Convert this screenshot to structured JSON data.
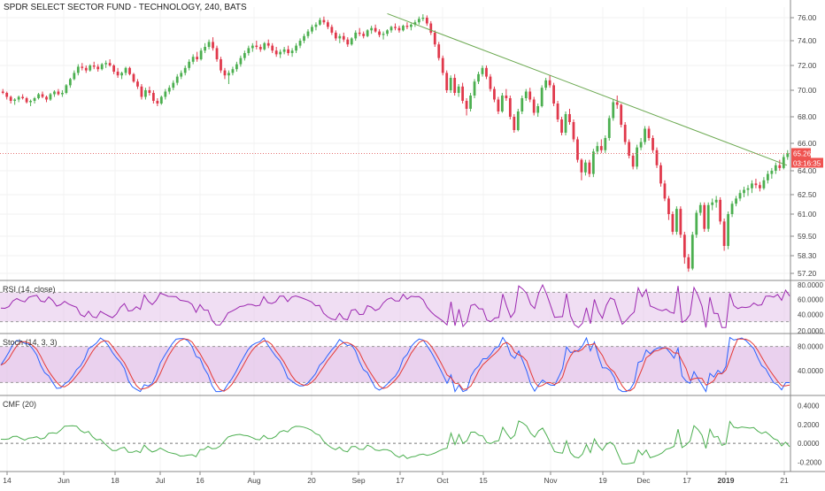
{
  "chart_data": {
    "type": "candlestick",
    "title": "SPDR SELECT SECTOR FUND - TECHNOLOGY, 240, BATS",
    "price_axis": {
      "ticks": [
        "76.00",
        "74.00",
        "72.00",
        "70.00",
        "68.00",
        "66.00",
        "64.00",
        "62.50",
        "61.00",
        "59.50",
        "58.30",
        "57.20"
      ],
      "ylim": [
        57.0,
        76.6
      ]
    },
    "x_axis": {
      "ticks": [
        "14",
        "Jun",
        "18",
        "Jul",
        "16",
        "Aug",
        "20",
        "Sep",
        "17",
        "Oct",
        "15",
        "Nov",
        "19",
        "Dec",
        "17",
        "2019",
        "21"
      ]
    },
    "last_price": "65.26",
    "countdown": "03:16:35",
    "colors": {
      "up": "#4caf50",
      "down": "#e0384b",
      "trendline": "#6aa84f",
      "rsi": "#9c27b0",
      "stoch_k": "#2962ff",
      "stoch_d": "#e53935",
      "cmf": "#4caf50",
      "panel_fill": "#e1bee7"
    },
    "candles": [
      [
        69.9,
        70.1,
        69.7,
        69.8
      ],
      [
        69.8,
        69.9,
        69.3,
        69.5
      ],
      [
        69.5,
        69.6,
        69.0,
        69.2
      ],
      [
        69.2,
        69.4,
        68.9,
        69.3
      ],
      [
        69.3,
        69.6,
        69.1,
        69.5
      ],
      [
        69.5,
        69.7,
        69.3,
        69.4
      ],
      [
        69.4,
        69.5,
        69.0,
        69.1
      ],
      [
        69.1,
        69.3,
        68.8,
        69.2
      ],
      [
        69.2,
        69.5,
        69.0,
        69.4
      ],
      [
        69.4,
        69.8,
        69.3,
        69.7
      ],
      [
        69.7,
        69.9,
        69.4,
        69.5
      ],
      [
        69.5,
        69.6,
        69.1,
        69.3
      ],
      [
        69.3,
        69.8,
        69.2,
        69.7
      ],
      [
        69.7,
        70.0,
        69.5,
        69.9
      ],
      [
        69.9,
        70.1,
        69.6,
        69.7
      ],
      [
        69.7,
        70.0,
        69.5,
        69.8
      ],
      [
        69.8,
        70.5,
        69.7,
        70.4
      ],
      [
        70.4,
        71.0,
        70.2,
        70.9
      ],
      [
        70.9,
        71.6,
        70.8,
        71.4
      ],
      [
        71.4,
        72.1,
        71.2,
        71.9
      ],
      [
        71.9,
        72.2,
        71.6,
        71.8
      ],
      [
        71.8,
        72.0,
        71.4,
        71.6
      ],
      [
        71.6,
        72.1,
        71.5,
        72.0
      ],
      [
        72.0,
        72.3,
        71.7,
        71.9
      ],
      [
        71.9,
        72.1,
        71.5,
        71.7
      ],
      [
        71.7,
        72.2,
        71.6,
        72.1
      ],
      [
        72.1,
        72.4,
        71.8,
        72.2
      ],
      [
        72.2,
        72.5,
        71.9,
        72.0
      ],
      [
        72.0,
        72.1,
        71.3,
        71.5
      ],
      [
        71.5,
        71.8,
        71.0,
        71.2
      ],
      [
        71.2,
        71.5,
        70.9,
        71.4
      ],
      [
        71.4,
        71.9,
        71.2,
        71.8
      ],
      [
        71.8,
        71.9,
        71.2,
        71.3
      ],
      [
        71.3,
        71.4,
        70.6,
        70.7
      ],
      [
        70.7,
        70.9,
        70.1,
        70.3
      ],
      [
        70.3,
        70.5,
        69.3,
        69.5
      ],
      [
        69.5,
        70.2,
        69.3,
        70.0
      ],
      [
        70.0,
        70.3,
        69.6,
        69.8
      ],
      [
        69.8,
        70.0,
        69.0,
        69.2
      ],
      [
        69.2,
        69.4,
        68.8,
        69.0
      ],
      [
        69.0,
        69.6,
        68.9,
        69.5
      ],
      [
        69.5,
        70.1,
        69.3,
        69.9
      ],
      [
        69.9,
        70.4,
        69.7,
        70.2
      ],
      [
        70.2,
        70.8,
        70.0,
        70.6
      ],
      [
        70.6,
        71.3,
        70.4,
        71.1
      ],
      [
        71.1,
        71.6,
        70.9,
        71.4
      ],
      [
        71.4,
        72.0,
        71.2,
        71.8
      ],
      [
        71.8,
        72.5,
        71.6,
        72.3
      ],
      [
        72.3,
        72.9,
        72.1,
        72.7
      ],
      [
        72.7,
        73.1,
        72.3,
        72.5
      ],
      [
        72.5,
        73.4,
        72.4,
        73.2
      ],
      [
        73.2,
        73.8,
        73.0,
        73.5
      ],
      [
        73.5,
        74.1,
        73.3,
        73.9
      ],
      [
        73.9,
        74.3,
        73.2,
        73.4
      ],
      [
        73.4,
        73.6,
        72.3,
        72.5
      ],
      [
        72.5,
        72.7,
        71.4,
        71.6
      ],
      [
        71.6,
        71.8,
        70.9,
        71.2
      ],
      [
        71.2,
        71.6,
        70.5,
        71.4
      ],
      [
        71.4,
        71.9,
        71.2,
        71.7
      ],
      [
        71.7,
        72.3,
        71.5,
        72.1
      ],
      [
        72.1,
        72.8,
        71.9,
        72.6
      ],
      [
        72.6,
        73.2,
        72.4,
        73.0
      ],
      [
        73.0,
        73.6,
        72.8,
        73.4
      ],
      [
        73.4,
        73.8,
        73.1,
        73.6
      ],
      [
        73.6,
        74.0,
        73.3,
        73.5
      ],
      [
        73.5,
        73.7,
        73.1,
        73.3
      ],
      [
        73.3,
        73.9,
        73.2,
        73.8
      ],
      [
        73.8,
        74.1,
        73.4,
        73.6
      ],
      [
        73.6,
        73.8,
        73.0,
        73.2
      ],
      [
        73.2,
        73.5,
        72.7,
        72.9
      ],
      [
        72.9,
        73.3,
        72.6,
        73.1
      ],
      [
        73.1,
        73.5,
        72.9,
        73.3
      ],
      [
        73.3,
        73.6,
        72.8,
        73.0
      ],
      [
        73.0,
        73.4,
        72.7,
        73.2
      ],
      [
        73.2,
        73.8,
        73.0,
        73.6
      ],
      [
        73.6,
        74.2,
        73.4,
        74.0
      ],
      [
        74.0,
        74.6,
        73.8,
        74.4
      ],
      [
        74.4,
        75.0,
        74.2,
        74.8
      ],
      [
        74.8,
        75.4,
        74.6,
        75.2
      ],
      [
        75.2,
        75.6,
        74.9,
        75.4
      ],
      [
        75.4,
        76.0,
        75.3,
        75.8
      ],
      [
        75.8,
        76.1,
        75.4,
        75.6
      ],
      [
        75.6,
        75.8,
        75.0,
        75.2
      ],
      [
        75.2,
        75.4,
        74.5,
        74.7
      ],
      [
        74.7,
        74.9,
        74.0,
        74.2
      ],
      [
        74.2,
        74.6,
        73.8,
        74.4
      ],
      [
        74.4,
        74.7,
        73.9,
        74.1
      ],
      [
        74.1,
        74.3,
        73.5,
        73.7
      ],
      [
        73.7,
        74.3,
        73.6,
        74.2
      ],
      [
        74.2,
        74.9,
        74.0,
        74.7
      ],
      [
        74.7,
        75.1,
        74.4,
        74.6
      ],
      [
        74.6,
        74.8,
        74.2,
        74.4
      ],
      [
        74.4,
        75.0,
        74.3,
        74.9
      ],
      [
        74.9,
        75.3,
        74.6,
        75.1
      ],
      [
        75.1,
        75.4,
        74.7,
        74.8
      ],
      [
        74.8,
        75.0,
        74.3,
        74.5
      ],
      [
        74.5,
        74.8,
        74.1,
        74.6
      ],
      [
        74.6,
        75.0,
        74.4,
        74.9
      ],
      [
        74.9,
        75.3,
        74.7,
        75.2
      ],
      [
        75.2,
        75.5,
        74.9,
        75.1
      ],
      [
        75.1,
        75.3,
        74.7,
        74.9
      ],
      [
        74.9,
        75.4,
        74.8,
        75.3
      ],
      [
        75.3,
        75.6,
        75.0,
        75.2
      ],
      [
        75.2,
        75.5,
        74.9,
        75.4
      ],
      [
        75.4,
        75.8,
        75.2,
        75.6
      ],
      [
        75.6,
        76.1,
        75.4,
        75.9
      ],
      [
        75.9,
        76.3,
        75.7,
        76.0
      ],
      [
        76.0,
        76.2,
        75.3,
        75.5
      ],
      [
        75.5,
        75.7,
        74.5,
        74.7
      ],
      [
        74.7,
        74.9,
        73.5,
        73.7
      ],
      [
        73.7,
        73.9,
        72.4,
        72.6
      ],
      [
        72.6,
        72.8,
        71.2,
        71.4
      ],
      [
        71.4,
        71.6,
        69.8,
        70.0
      ],
      [
        70.0,
        71.2,
        69.8,
        71.0
      ],
      [
        71.0,
        71.3,
        69.6,
        69.8
      ],
      [
        69.8,
        70.5,
        69.5,
        70.3
      ],
      [
        70.3,
        70.6,
        69.0,
        69.2
      ],
      [
        69.2,
        69.4,
        68.1,
        68.6
      ],
      [
        68.6,
        69.8,
        68.4,
        69.6
      ],
      [
        69.6,
        70.9,
        69.4,
        70.7
      ],
      [
        70.7,
        71.5,
        70.5,
        71.3
      ],
      [
        71.3,
        72.0,
        71.1,
        71.8
      ],
      [
        71.8,
        72.0,
        70.9,
        71.1
      ],
      [
        71.1,
        71.3,
        69.9,
        70.1
      ],
      [
        70.1,
        70.3,
        69.1,
        69.3
      ],
      [
        69.3,
        69.5,
        68.2,
        68.4
      ],
      [
        68.4,
        69.8,
        68.3,
        69.6
      ],
      [
        69.6,
        70.1,
        69.2,
        69.4
      ],
      [
        69.4,
        69.6,
        67.8,
        68.0
      ],
      [
        68.0,
        68.2,
        66.8,
        67.0
      ],
      [
        67.0,
        68.6,
        66.9,
        68.4
      ],
      [
        68.4,
        69.6,
        68.2,
        69.4
      ],
      [
        69.4,
        70.1,
        69.2,
        69.9
      ],
      [
        69.9,
        70.2,
        69.1,
        69.3
      ],
      [
        69.3,
        69.5,
        68.1,
        68.3
      ],
      [
        68.3,
        69.0,
        68.0,
        68.8
      ],
      [
        68.8,
        70.4,
        68.7,
        70.2
      ],
      [
        70.2,
        71.0,
        70.0,
        70.8
      ],
      [
        70.8,
        71.2,
        70.2,
        70.4
      ],
      [
        70.4,
        70.6,
        68.8,
        69.0
      ],
      [
        69.0,
        69.2,
        67.6,
        67.8
      ],
      [
        67.8,
        68.0,
        66.6,
        66.8
      ],
      [
        66.8,
        68.4,
        66.6,
        68.2
      ],
      [
        68.2,
        68.6,
        67.4,
        67.6
      ],
      [
        67.6,
        67.8,
        66.1,
        66.3
      ],
      [
        66.3,
        66.5,
        64.6,
        64.8
      ],
      [
        64.8,
        64.9,
        63.4,
        63.9
      ],
      [
        63.9,
        64.8,
        63.7,
        64.6
      ],
      [
        64.6,
        64.8,
        63.6,
        63.8
      ],
      [
        63.8,
        65.6,
        63.6,
        65.4
      ],
      [
        65.4,
        66.1,
        65.2,
        65.8
      ],
      [
        65.8,
        66.3,
        65.3,
        65.5
      ],
      [
        65.5,
        66.6,
        65.3,
        66.4
      ],
      [
        66.4,
        68.1,
        66.2,
        67.9
      ],
      [
        67.9,
        69.3,
        67.7,
        69.1
      ],
      [
        69.1,
        69.6,
        68.6,
        68.9
      ],
      [
        68.9,
        69.0,
        67.2,
        67.4
      ],
      [
        67.4,
        67.6,
        65.9,
        66.1
      ],
      [
        66.1,
        66.3,
        64.9,
        65.1
      ],
      [
        65.1,
        65.3,
        64.1,
        64.3
      ],
      [
        64.3,
        65.9,
        64.1,
        65.7
      ],
      [
        65.7,
        66.4,
        65.5,
        66.1
      ],
      [
        66.1,
        67.3,
        65.9,
        67.1
      ],
      [
        67.1,
        67.3,
        66.2,
        66.4
      ],
      [
        66.4,
        66.6,
        65.3,
        65.5
      ],
      [
        65.5,
        65.7,
        64.2,
        64.4
      ],
      [
        64.4,
        64.6,
        63.0,
        63.2
      ],
      [
        63.2,
        63.4,
        62.0,
        62.2
      ],
      [
        62.2,
        62.4,
        60.6,
        61.0
      ],
      [
        61.0,
        61.2,
        59.6,
        59.8
      ],
      [
        59.8,
        61.6,
        59.6,
        61.4
      ],
      [
        61.4,
        61.6,
        59.4,
        59.6
      ],
      [
        59.6,
        59.8,
        57.8,
        58.2
      ],
      [
        58.2,
        58.4,
        57.3,
        57.5
      ],
      [
        57.5,
        59.8,
        57.4,
        59.6
      ],
      [
        59.6,
        61.3,
        59.4,
        61.1
      ],
      [
        61.1,
        61.9,
        60.9,
        61.7
      ],
      [
        61.7,
        61.9,
        59.8,
        60.0
      ],
      [
        60.0,
        61.9,
        59.8,
        61.7
      ],
      [
        61.7,
        62.2,
        61.3,
        61.9
      ],
      [
        61.9,
        62.4,
        61.5,
        62.1
      ],
      [
        62.1,
        62.3,
        60.3,
        60.5
      ],
      [
        60.5,
        60.7,
        58.6,
        58.9
      ],
      [
        58.9,
        61.2,
        58.7,
        61.0
      ],
      [
        61.0,
        62.0,
        60.8,
        61.8
      ],
      [
        61.8,
        62.4,
        61.6,
        62.2
      ],
      [
        62.2,
        62.8,
        62.0,
        62.6
      ],
      [
        62.6,
        63.0,
        62.3,
        62.8
      ],
      [
        62.8,
        63.1,
        62.4,
        62.9
      ],
      [
        62.9,
        63.4,
        62.6,
        63.2
      ],
      [
        63.2,
        63.5,
        62.9,
        63.1
      ],
      [
        63.1,
        63.3,
        62.7,
        62.9
      ],
      [
        62.9,
        63.6,
        62.8,
        63.4
      ],
      [
        63.4,
        64.0,
        63.2,
        63.8
      ],
      [
        63.8,
        64.2,
        63.5,
        64.0
      ],
      [
        64.0,
        64.6,
        63.8,
        64.4
      ],
      [
        64.4,
        64.8,
        64.0,
        64.2
      ],
      [
        64.2,
        65.2,
        64.1,
        65.0
      ],
      [
        65.0,
        65.5,
        64.8,
        65.26
      ]
    ]
  },
  "indicators": {
    "rsi": {
      "label": "RSI (14, close)",
      "ticks": [
        "80.0000",
        "60.0000",
        "40.0000",
        "20.0000"
      ]
    },
    "stoch": {
      "label": "Stoch (14, 3, 3)",
      "ticks": [
        "80.0000",
        "40.0000"
      ]
    },
    "cmf": {
      "label": "CMF (20)",
      "ticks": [
        "0.4000",
        "0.2000",
        "0.0000",
        "-0.2000"
      ]
    }
  }
}
